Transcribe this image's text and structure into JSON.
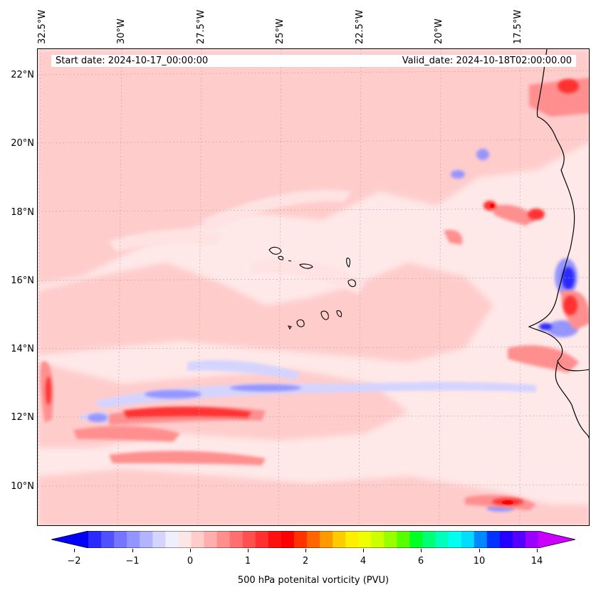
{
  "map": {
    "start_date": "Start date: 2024-10-17_00:00:00",
    "valid_date": "Valid_date: 2024-10-18T02:00:00.00",
    "lon_labels": [
      "32.5°W",
      "30°W",
      "27.5°W",
      "25°W",
      "22.5°W",
      "20°W",
      "17.5°W"
    ],
    "lat_labels": [
      "22°N",
      "20°N",
      "18°N",
      "16°N",
      "14°N",
      "12°N",
      "10°N"
    ]
  },
  "colorbar": {
    "title": "500 hPa potenital vorticity (PVU)",
    "tick_labels": [
      "−2",
      "−1",
      "0",
      "1",
      "2",
      "4",
      "6",
      "10",
      "14"
    ],
    "colors": [
      "#0000ff",
      "#2a2aff",
      "#5050ff",
      "#7575ff",
      "#9595ff",
      "#b3b3ff",
      "#d4d4ff",
      "#eeeeff",
      "#ffe6e6",
      "#ffcccc",
      "#ffadad",
      "#ff8f8f",
      "#ff6f6f",
      "#ff5050",
      "#ff3030",
      "#ff1010",
      "#ff0000",
      "#ff3300",
      "#ff6600",
      "#ff9900",
      "#ffcc00",
      "#ffee00",
      "#eeff00",
      "#ccff00",
      "#99ff00",
      "#55ff00",
      "#00ff22",
      "#00ff77",
      "#00ffbb",
      "#00ffee",
      "#00ddff",
      "#0088ff",
      "#0033ff",
      "#2200ff",
      "#5500ff",
      "#9900ff",
      "#cc00ff"
    ],
    "accent_positive": "#ff0000",
    "accent_negative": "#0000ff"
  }
}
